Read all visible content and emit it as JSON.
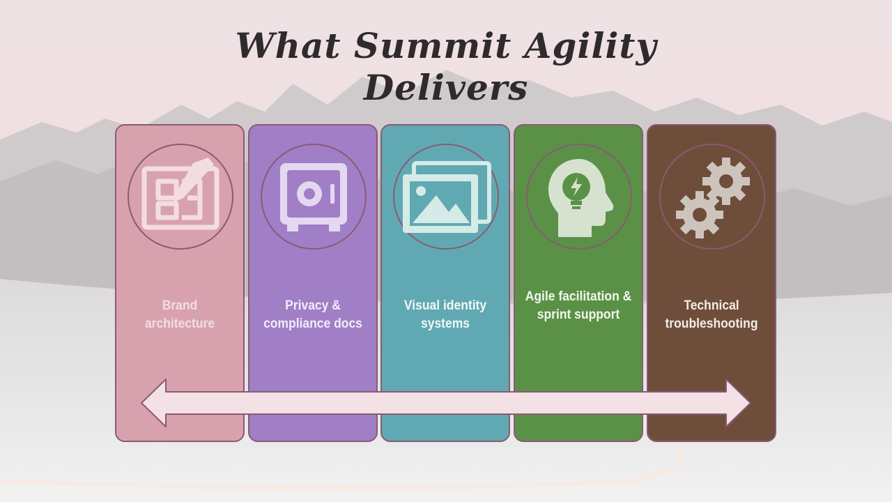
{
  "slide": {
    "title_line1": "What Summit Agility",
    "title_line2": "Delivers"
  },
  "cards": [
    {
      "label": "Brand architecture",
      "icon": "blueprint-icon",
      "color": "#d7a2ae",
      "text_color": "#f4dde2"
    },
    {
      "label": "Privacy & compliance docs",
      "icon": "safe-icon",
      "color": "#a07fc6",
      "text_color": "#f3ecf8"
    },
    {
      "label": "Visual identity systems",
      "icon": "images-icon",
      "color": "#61a9b2",
      "text_color": "#f1f8f8"
    },
    {
      "label": "Agile facilitation & sprint support",
      "icon": "head-lightbulb-icon",
      "color": "#5a9147",
      "text_color": "#f2f7ef"
    },
    {
      "label": "Technical troubleshooting",
      "icon": "gears-icon",
      "color": "#6e4e3a",
      "text_color": "#f4ece6"
    }
  ],
  "colors": {
    "title": "#2f2a2b",
    "border": "#8a5a73",
    "arrow_fill": "#f3e1e6"
  }
}
